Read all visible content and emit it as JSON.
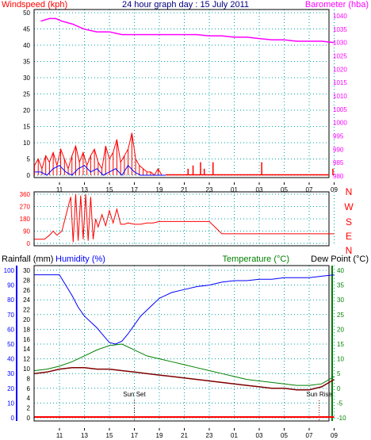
{
  "chart_data": [
    {
      "type": "line",
      "title": "24 hour graph day : 15 July 2011",
      "left_axis_label": "Windspeed (kph)",
      "right_axis_label": "Barometer (hba)",
      "left_ticks": [
        0,
        5,
        10,
        15,
        20,
        25,
        30,
        35,
        40,
        45,
        50
      ],
      "right_ticks": [
        980,
        985,
        990,
        995,
        1000,
        1005,
        1010,
        1015,
        1020,
        1025,
        1030,
        1035,
        1040
      ],
      "x_ticks": [
        "11",
        "13",
        "15",
        "17",
        "19",
        "21",
        "23",
        "01",
        "03",
        "05",
        "07",
        "09"
      ],
      "ylim_left": [
        0,
        50
      ],
      "ylim_right": [
        960,
        1042
      ],
      "grid": true,
      "colors": {
        "wind": "#ff0000",
        "gust": "#0000ff",
        "barometer": "#ff00ff",
        "left_axis": "#ff0000",
        "right_axis": "#ff00ff",
        "title": "#000080"
      },
      "series": [
        {
          "role": "barometer",
          "x": [
            9.5,
            10.2,
            10.7,
            11.2,
            12,
            13,
            14,
            15,
            16,
            17,
            18,
            19,
            20,
            21,
            22,
            23,
            24,
            25,
            26,
            27,
            28,
            29,
            30,
            31,
            32,
            33
          ],
          "values": [
            1038,
            1039,
            1039,
            1038,
            1037,
            1035,
            1034,
            1034,
            1033,
            1033,
            1033,
            1033,
            1033,
            1033,
            1033,
            1032.5,
            1032.5,
            1032,
            1032,
            1031.5,
            1031,
            1031,
            1030.5,
            1030.5,
            1030.5,
            1030
          ]
        },
        {
          "role": "wind_red_avg",
          "x": [
            9,
            9.3,
            9.6,
            9.9,
            10.2,
            10.5,
            10.8,
            11.1,
            11.4,
            11.7,
            12,
            12.3,
            12.6,
            12.9,
            13.2,
            13.5,
            13.8,
            14.1,
            14.4,
            14.7,
            15,
            15.3,
            15.6,
            15.9,
            16.2,
            16.5,
            16.8,
            17.1,
            17.4,
            17.7,
            18,
            18.3,
            18.6,
            18.9,
            19.2
          ],
          "values": [
            3,
            5,
            2,
            6,
            4,
            7,
            3,
            8,
            5,
            2,
            6,
            9,
            4,
            7,
            3,
            6,
            8,
            4,
            2,
            9,
            5,
            7,
            11,
            4,
            6,
            8,
            13,
            5,
            3,
            2,
            1,
            1,
            0,
            2,
            0
          ]
        },
        {
          "role": "wind_blue_gust",
          "x": [
            9,
            9.5,
            10,
            10.5,
            11,
            11.5,
            12,
            12.5,
            13,
            13.5,
            14,
            14.5,
            15,
            15.5,
            16,
            16.5,
            17,
            17.5,
            18,
            18.5,
            19,
            19.5
          ],
          "values": [
            1,
            1,
            0,
            2,
            3,
            1,
            0,
            2,
            3,
            1,
            2,
            0,
            1,
            2,
            0,
            3,
            1,
            0,
            0,
            0,
            0,
            0
          ]
        }
      ],
      "scattered_wind_spikes": [
        {
          "x": 21.3,
          "value": 2
        },
        {
          "x": 21.7,
          "value": 3
        },
        {
          "x": 22.3,
          "value": 4
        },
        {
          "x": 22.6,
          "value": 2
        },
        {
          "x": 23.3,
          "value": 4
        },
        {
          "x": 27.2,
          "value": 4
        },
        {
          "x": 32.9,
          "value": 2
        }
      ]
    },
    {
      "type": "line",
      "title": "",
      "left_ticks": [
        0,
        90,
        180,
        270,
        360
      ],
      "compass_labels": [
        "N",
        "W",
        "S",
        "E",
        "N"
      ],
      "ylim": [
        0,
        360
      ],
      "grid": true,
      "colors": {
        "direction": "#ff0000",
        "axis": "#ff0000"
      },
      "series": [
        {
          "role": "wind_direction",
          "x": [
            9,
            9.4,
            9.8,
            10.2,
            10.5,
            10.8,
            11.2,
            11.5,
            11.9,
            12.1,
            12.3,
            12.5,
            12.7,
            12.9,
            13.1,
            13.3,
            13.5,
            13.7,
            13.9,
            14.1,
            14.4,
            14.7,
            15,
            15.3,
            15.6,
            15.9,
            16.2,
            16.5,
            17,
            17.5,
            18,
            18.5,
            19,
            20,
            21,
            22,
            23,
            24,
            25,
            26,
            27,
            28,
            29,
            30,
            31,
            32,
            33
          ],
          "values": [
            30,
            30,
            30,
            60,
            90,
            60,
            90,
            200,
            340,
            10,
            360,
            20,
            350,
            30,
            360,
            20,
            340,
            30,
            180,
            120,
            210,
            130,
            240,
            150,
            250,
            140,
            140,
            150,
            140,
            140,
            150,
            150,
            160,
            160,
            160,
            160,
            160,
            70,
            70,
            70,
            70,
            70,
            70,
            70,
            70,
            70,
            70
          ]
        }
      ]
    },
    {
      "type": "line",
      "title": "",
      "left_axis_label_rainfall": "Rainfall (mm)",
      "left_axis_label_humidity": "Humidity (%)",
      "right_axis_label_temp": "Temperature (°C)",
      "right_axis_label_dew": "Dew Point (°C)",
      "rain_ticks": [
        0,
        2,
        4,
        6,
        8,
        10,
        12,
        14,
        16,
        18,
        20,
        22,
        24,
        26,
        28,
        30
      ],
      "humidity_ticks": [
        0,
        10,
        20,
        30,
        40,
        50,
        60,
        70,
        80,
        90,
        100
      ],
      "temp_ticks": [
        -10,
        -5,
        0,
        5,
        10,
        15,
        20,
        25,
        30,
        35,
        40
      ],
      "x_ticks": [
        "11",
        "13",
        "15",
        "17",
        "19",
        "21",
        "23",
        "01",
        "03",
        "05",
        "07",
        "09"
      ],
      "ylim_temp": [
        -10,
        40
      ],
      "grid": true,
      "annotations": [
        {
          "text": "Sun Set",
          "x": 17.0
        },
        {
          "text": "Sun Rise",
          "x": 31.8
        }
      ],
      "colors": {
        "rainfall": "#ff0000",
        "humidity": "#0000ff",
        "temperature": "#008000",
        "dewpoint": "#800000",
        "temp_axis": "#008000"
      },
      "series": [
        {
          "role": "humidity",
          "x": [
            9,
            10,
            11,
            11.5,
            12,
            12.5,
            13,
            13.5,
            14,
            14.5,
            15,
            15.5,
            16,
            16.5,
            17,
            17.5,
            18,
            18.5,
            19,
            19.5,
            20,
            21,
            22,
            23,
            24,
            25,
            26,
            27,
            28,
            29,
            30,
            31,
            32,
            33
          ],
          "values": [
            97,
            97,
            97,
            90,
            83,
            75,
            69,
            65,
            61,
            56,
            51,
            50,
            52,
            57,
            63,
            69,
            73,
            77,
            81,
            83,
            85,
            87,
            89,
            90,
            92,
            93,
            93,
            94,
            94,
            95,
            95,
            95,
            96,
            97
          ]
        },
        {
          "role": "temperature",
          "x": [
            9,
            10,
            11,
            12,
            13,
            14,
            15,
            16,
            17,
            18,
            19,
            20,
            21,
            22,
            23,
            24,
            25,
            26,
            27,
            28,
            29,
            30,
            31,
            32,
            33
          ],
          "values": [
            6,
            6.5,
            7.5,
            9,
            11,
            13,
            14.5,
            15,
            13,
            11,
            10,
            9,
            8,
            7,
            6,
            5,
            4,
            3,
            2.5,
            2,
            1.5,
            1,
            1,
            1.5,
            4
          ]
        },
        {
          "role": "dew_point",
          "x": [
            9,
            10,
            11,
            12,
            13,
            14,
            15,
            16,
            17,
            18,
            19,
            20,
            21,
            22,
            23,
            24,
            25,
            26,
            27,
            28,
            29,
            30,
            31,
            32,
            33
          ],
          "values": [
            5,
            5.5,
            6.5,
            7,
            7,
            6.5,
            6.5,
            6,
            5.5,
            5,
            4.5,
            4,
            3.5,
            3,
            2.5,
            2,
            1.5,
            1,
            0.5,
            0,
            0,
            -0.5,
            -0.5,
            0.5,
            3
          ]
        },
        {
          "role": "rainfall",
          "x": [
            9,
            33
          ],
          "values": [
            0,
            0
          ]
        }
      ]
    }
  ]
}
